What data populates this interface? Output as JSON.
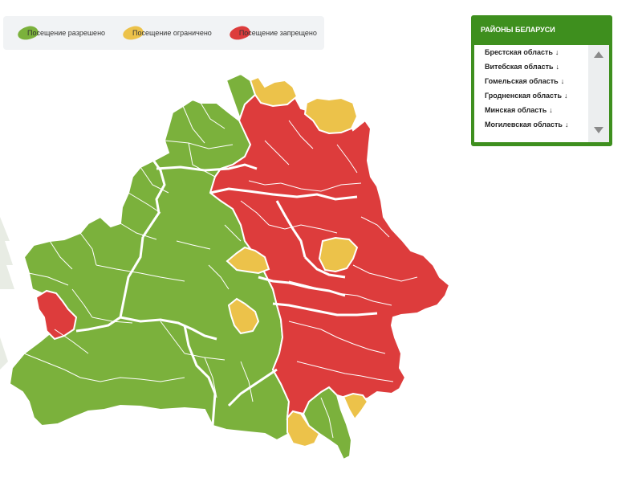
{
  "colors": {
    "allowed": "#7bb13c",
    "limited": "#ecc24a",
    "forbidden": "#dd3c3c",
    "panel_green": "#3e8f1e"
  },
  "legend": {
    "allowed": "Посещение разрешено",
    "limited": "Посещение ограничено",
    "forbidden": "Посещение запрещено"
  },
  "panel": {
    "title": "РАЙОНЫ БЕЛАРУСИ",
    "regions": [
      "Брестская область",
      "Витебская область",
      "Гомельская область",
      "Гродненская область",
      "Минская область",
      "Могилевская область"
    ],
    "arrow": "↓"
  }
}
